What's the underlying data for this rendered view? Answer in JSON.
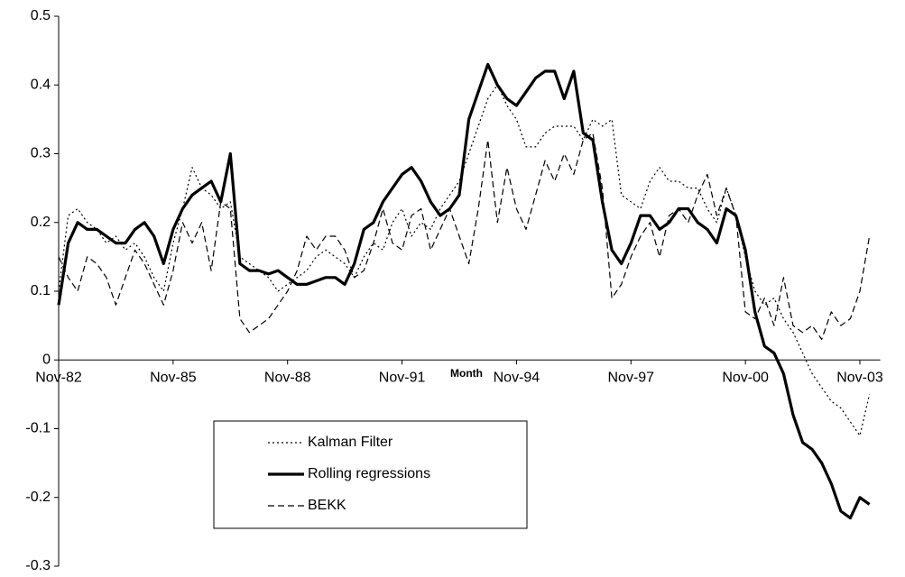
{
  "chart_data": {
    "type": "line",
    "x_label": "Month",
    "categories": [
      "Nov-82",
      null,
      null,
      null,
      null,
      null,
      null,
      null,
      null,
      null,
      null,
      null,
      "Nov-85",
      null,
      null,
      null,
      null,
      null,
      null,
      null,
      null,
      null,
      null,
      null,
      "Nov-88",
      null,
      null,
      null,
      null,
      null,
      null,
      null,
      null,
      null,
      null,
      null,
      "Nov-91",
      null,
      null,
      null,
      null,
      null,
      null,
      null,
      null,
      null,
      null,
      null,
      "Nov-94",
      null,
      null,
      null,
      null,
      null,
      null,
      null,
      null,
      null,
      null,
      null,
      "Nov-97",
      null,
      null,
      null,
      null,
      null,
      null,
      null,
      null,
      null,
      null,
      null,
      "Nov-00",
      null,
      null,
      null,
      null,
      null,
      null,
      null,
      null,
      null,
      null,
      null,
      "Nov-03",
      null
    ],
    "series": [
      {
        "name": "Kalman Filter",
        "color": "#000000",
        "style": "dotted",
        "values": [
          0.1,
          0.21,
          0.22,
          0.2,
          0.19,
          0.17,
          0.18,
          0.16,
          0.17,
          0.15,
          0.12,
          0.1,
          0.17,
          0.22,
          0.28,
          0.25,
          0.24,
          0.22,
          0.23,
          0.15,
          0.14,
          0.13,
          0.12,
          0.1,
          0.11,
          0.12,
          0.13,
          0.15,
          0.16,
          0.15,
          0.14,
          0.12,
          0.15,
          0.17,
          0.16,
          0.2,
          0.22,
          0.18,
          0.2,
          0.19,
          0.22,
          0.24,
          0.26,
          0.3,
          0.34,
          0.38,
          0.4,
          0.37,
          0.35,
          0.31,
          0.31,
          0.33,
          0.34,
          0.34,
          0.34,
          0.32,
          0.35,
          0.34,
          0.35,
          0.24,
          0.23,
          0.22,
          0.26,
          0.28,
          0.26,
          0.26,
          0.25,
          0.25,
          0.22,
          0.2,
          0.25,
          0.21,
          0.15,
          0.1,
          0.08,
          0.09,
          0.06,
          0.04,
          0.01,
          -0.02,
          -0.04,
          -0.06,
          -0.07,
          -0.09,
          -0.11,
          -0.05
        ]
      },
      {
        "name": "Rolling regressions",
        "color": "#000000",
        "style": "solid",
        "values": [
          0.08,
          0.17,
          0.2,
          0.19,
          0.19,
          0.18,
          0.17,
          0.17,
          0.19,
          0.2,
          0.18,
          0.14,
          0.19,
          0.22,
          0.24,
          0.25,
          0.26,
          0.23,
          0.3,
          0.14,
          0.13,
          0.13,
          0.125,
          0.13,
          0.12,
          0.11,
          0.11,
          0.115,
          0.12,
          0.12,
          0.11,
          0.14,
          0.19,
          0.2,
          0.23,
          0.25,
          0.27,
          0.28,
          0.26,
          0.23,
          0.21,
          0.22,
          0.24,
          0.35,
          0.39,
          0.43,
          0.4,
          0.38,
          0.37,
          0.39,
          0.41,
          0.42,
          0.42,
          0.38,
          0.42,
          0.33,
          0.32,
          0.23,
          0.16,
          0.14,
          0.17,
          0.21,
          0.21,
          0.19,
          0.2,
          0.22,
          0.22,
          0.2,
          0.19,
          0.17,
          0.22,
          0.21,
          0.16,
          0.07,
          0.02,
          0.01,
          -0.02,
          -0.08,
          -0.12,
          -0.13,
          -0.15,
          -0.18,
          -0.22,
          -0.23,
          -0.2,
          -0.21
        ]
      },
      {
        "name": "BEKK",
        "color": "#000000",
        "style": "dashed",
        "values": [
          0.15,
          0.12,
          0.1,
          0.15,
          0.14,
          0.12,
          0.08,
          0.12,
          0.16,
          0.14,
          0.11,
          0.08,
          0.13,
          0.2,
          0.17,
          0.2,
          0.13,
          0.23,
          0.22,
          0.06,
          0.04,
          0.05,
          0.06,
          0.08,
          0.1,
          0.13,
          0.18,
          0.16,
          0.18,
          0.18,
          0.16,
          0.12,
          0.13,
          0.17,
          0.22,
          0.17,
          0.16,
          0.21,
          0.22,
          0.16,
          0.19,
          0.22,
          0.18,
          0.14,
          0.22,
          0.32,
          0.2,
          0.28,
          0.22,
          0.19,
          0.24,
          0.29,
          0.26,
          0.3,
          0.27,
          0.32,
          0.33,
          0.25,
          0.09,
          0.11,
          0.15,
          0.18,
          0.2,
          0.15,
          0.21,
          0.22,
          0.2,
          0.24,
          0.27,
          0.21,
          0.25,
          0.21,
          0.07,
          0.06,
          0.09,
          0.05,
          0.12,
          0.05,
          0.04,
          0.05,
          0.03,
          0.07,
          0.05,
          0.06,
          0.1,
          0.18
        ]
      }
    ],
    "ylim": [
      -0.3,
      0.5
    ],
    "yticks": [
      -0.3,
      -0.2,
      -0.1,
      0,
      0.1,
      0.2,
      0.3,
      0.4,
      0.5
    ],
    "legend": "lower left"
  }
}
